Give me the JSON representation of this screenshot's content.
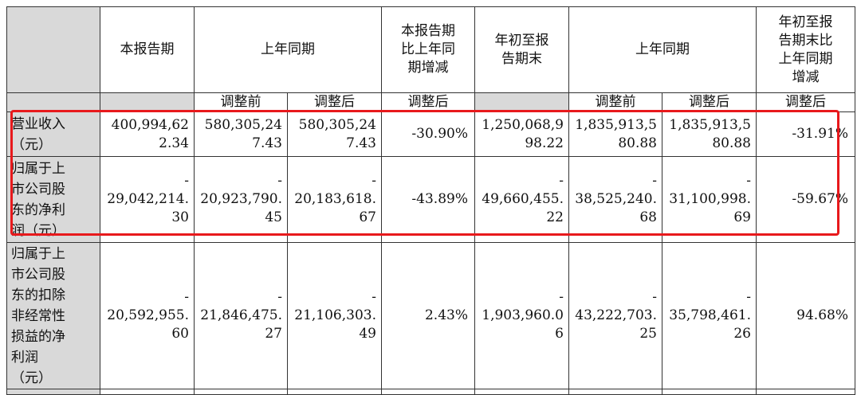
{
  "header": {
    "current_period": "本报告期",
    "prior_same_period": "上年同期",
    "period_change": [
      "本报告期",
      "比上年同",
      "期增减"
    ],
    "ytd": [
      "年初至报",
      "告期末"
    ],
    "prior_same_period_ytd": "上年同期",
    "ytd_change": [
      "年初至报",
      "告期末比",
      "上年同期",
      "增减"
    ],
    "sub": {
      "before_adj": "调整前",
      "after_adj": "调整后",
      "after_adj_change": "调整后",
      "before_adj_ytd": "调整前",
      "after_adj_ytd": "调整后",
      "after_adj_ytd_change": "调整后"
    }
  },
  "rows": [
    {
      "label": [
        "营业收入",
        "（元）"
      ],
      "current": [
        "400,994,62",
        "2.34"
      ],
      "prior_before": [
        "580,305,24",
        "7.43"
      ],
      "prior_after": [
        "580,305,24",
        "7.43"
      ],
      "change": "-30.90%",
      "ytd": [
        "1,250,068,9",
        "98.22"
      ],
      "ytd_prior_before": [
        "1,835,913,5",
        "80.88"
      ],
      "ytd_prior_after": [
        "1,835,913,5",
        "80.88"
      ],
      "ytd_change": "-31.91%"
    },
    {
      "label": [
        "归属于上",
        "市公司股",
        "东的净利",
        "润（元）"
      ],
      "current": [
        "-",
        "29,042,214.",
        "30"
      ],
      "prior_before": [
        "-",
        "20,923,790.",
        "45"
      ],
      "prior_after": [
        "-",
        "20,183,618.",
        "67"
      ],
      "change": "-43.89%",
      "ytd": [
        "-",
        "49,660,455.",
        "22"
      ],
      "ytd_prior_before": [
        "-",
        "38,525,240.",
        "68"
      ],
      "ytd_prior_after": [
        "-",
        "31,100,998.",
        "69"
      ],
      "ytd_change": "-59.67%"
    },
    {
      "label": [
        "归属于上",
        "市公司股",
        "东的扣除",
        "非经常性",
        "损益的净",
        "利润",
        "（元）"
      ],
      "current": [
        "-",
        "20,592,955.",
        "60"
      ],
      "prior_before": [
        "-",
        "21,846,475.",
        "27"
      ],
      "prior_after": [
        "-",
        "21,106,303.",
        "49"
      ],
      "change": "2.43%",
      "ytd": [
        "-",
        "1,903,960.0",
        "6"
      ],
      "ytd_prior_before": [
        "-",
        "43,222,703.",
        "25"
      ],
      "ytd_prior_after": [
        "-",
        "35,798,461.",
        "26"
      ],
      "ytd_change": "94.68%"
    }
  ],
  "highlight_color": "#e8191c"
}
